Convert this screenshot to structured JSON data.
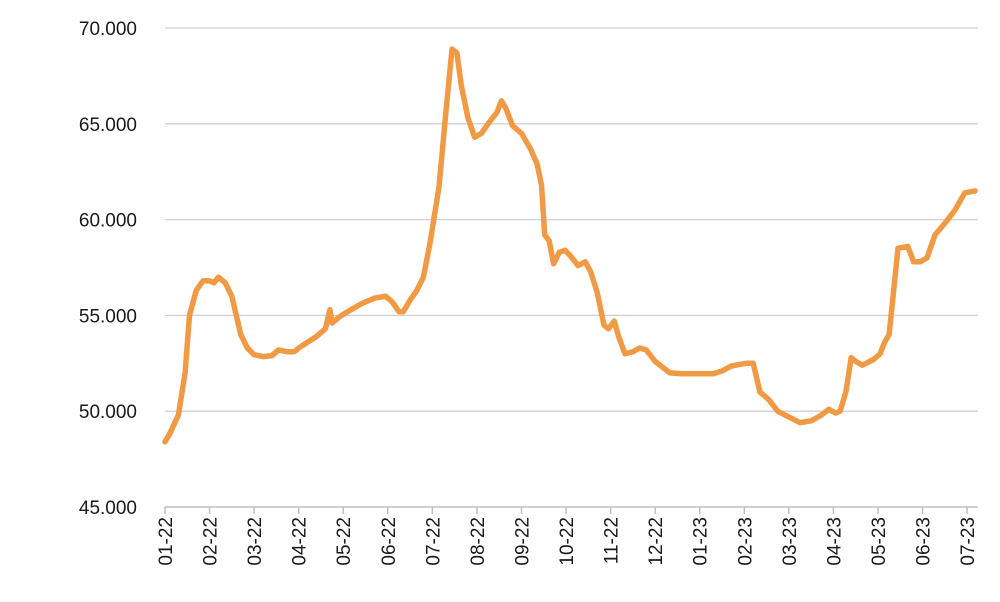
{
  "chart_data": {
    "type": "line",
    "xlim": [
      0,
      18.2
    ],
    "xticks": [
      {
        "value": 0,
        "label": "01-22"
      },
      {
        "value": 1,
        "label": "02-22"
      },
      {
        "value": 2,
        "label": "03-22"
      },
      {
        "value": 3,
        "label": "04-22"
      },
      {
        "value": 4,
        "label": "05-22"
      },
      {
        "value": 5,
        "label": "06-22"
      },
      {
        "value": 6,
        "label": "07-22"
      },
      {
        "value": 7,
        "label": "08-22"
      },
      {
        "value": 8,
        "label": "09-22"
      },
      {
        "value": 9,
        "label": "10-22"
      },
      {
        "value": 10,
        "label": "11-22"
      },
      {
        "value": 11,
        "label": "12-22"
      },
      {
        "value": 12,
        "label": "01-23"
      },
      {
        "value": 13,
        "label": "02-23"
      },
      {
        "value": 14,
        "label": "03-23"
      },
      {
        "value": 15,
        "label": "04-23"
      },
      {
        "value": 16,
        "label": "05-23"
      },
      {
        "value": 17,
        "label": "06-23"
      },
      {
        "value": 18,
        "label": "07-23"
      }
    ],
    "ylim": [
      45000,
      70000
    ],
    "yticks": [
      {
        "value": 45000,
        "label": "45.000"
      },
      {
        "value": 50000,
        "label": "50.000"
      },
      {
        "value": 55000,
        "label": "55.000"
      },
      {
        "value": 60000,
        "label": "60.000"
      },
      {
        "value": 65000,
        "label": "65.000"
      },
      {
        "value": 70000,
        "label": "70.000"
      }
    ],
    "grid": true,
    "series": [
      {
        "color": "#f09a45",
        "x": [
          0,
          0.1,
          0.3,
          0.45,
          0.55,
          0.7,
          0.85,
          1.0,
          1.1,
          1.2,
          1.35,
          1.5,
          1.6,
          1.7,
          1.85,
          2.0,
          2.2,
          2.4,
          2.55,
          2.75,
          2.9,
          3.0,
          3.2,
          3.4,
          3.6,
          3.7,
          3.75,
          3.9,
          4.1,
          4.4,
          4.7,
          4.95,
          5.1,
          5.25,
          5.35,
          5.5,
          5.65,
          5.8,
          5.95,
          6.15,
          6.3,
          6.44,
          6.55,
          6.65,
          6.8,
          6.95,
          7.1,
          7.25,
          7.45,
          7.55,
          7.65,
          7.8,
          8.0,
          8.2,
          8.35,
          8.45,
          8.52,
          8.62,
          8.72,
          8.85,
          8.98,
          9.1,
          9.27,
          9.43,
          9.55,
          9.7,
          9.85,
          9.95,
          10.08,
          10.18,
          10.32,
          10.5,
          10.65,
          10.8,
          11.0,
          11.33,
          11.6,
          12.0,
          12.3,
          12.5,
          12.7,
          12.9,
          13.05,
          13.2,
          13.35,
          13.55,
          13.75,
          14.0,
          14.25,
          14.5,
          14.7,
          14.9,
          15.05,
          15.15,
          15.28,
          15.4,
          15.5,
          15.65,
          15.9,
          16.05,
          16.15,
          16.25,
          16.45,
          16.67,
          16.8,
          16.95,
          17.1,
          17.28,
          17.5,
          17.73,
          17.95,
          18.18
        ],
        "values": [
          48400,
          48800,
          49800,
          52000,
          55000,
          56300,
          56800,
          56800,
          56700,
          57000,
          56700,
          56000,
          55000,
          54000,
          53300,
          52950,
          52850,
          52900,
          53200,
          53100,
          53100,
          53300,
          53600,
          53900,
          54300,
          55300,
          54600,
          54900,
          55200,
          55600,
          55900,
          56000,
          55700,
          55200,
          55200,
          55800,
          56300,
          57000,
          58800,
          61700,
          65500,
          68900,
          68700,
          67000,
          65300,
          64300,
          64500,
          65000,
          65600,
          66200,
          65800,
          64900,
          64500,
          63700,
          62900,
          61800,
          59200,
          58900,
          57700,
          58300,
          58400,
          58100,
          57600,
          57800,
          57300,
          56200,
          54500,
          54300,
          54700,
          53900,
          53000,
          53100,
          53300,
          53200,
          52600,
          52000,
          51950,
          51950,
          51950,
          52100,
          52350,
          52450,
          52500,
          52500,
          51000,
          50600,
          50000,
          49700,
          49400,
          49500,
          49750,
          50100,
          49900,
          50000,
          51000,
          52800,
          52600,
          52400,
          52700,
          53000,
          53600,
          54000,
          58500,
          58600,
          57800,
          57800,
          58000,
          59200,
          59800,
          60500,
          61400,
          61500
        ]
      }
    ]
  }
}
